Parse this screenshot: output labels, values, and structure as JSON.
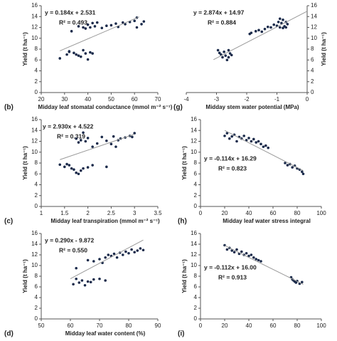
{
  "chart_data": [
    {
      "type": "scatter",
      "panel_label": "(b)",
      "xlabel": "Midday leaf stomatal conductance (mmol m⁻² s⁻¹)",
      "ylabel": "Yield (t ha⁻¹)",
      "equation": "y = 0.184x + 2.531",
      "r2": "R² = 0.493",
      "color": "#1a2a4a",
      "yaxis_position": "left",
      "xlim": [
        20,
        70
      ],
      "xticks": [
        20,
        30,
        40,
        50,
        60,
        70
      ],
      "ylim": [
        0,
        16
      ],
      "yticks": [
        0,
        2,
        4,
        6,
        8,
        10,
        12,
        14,
        16
      ],
      "x": [
        28,
        31,
        32,
        34,
        35,
        36,
        37,
        38,
        39,
        40,
        41,
        42,
        32,
        33,
        36,
        38,
        39,
        40,
        41,
        42,
        43,
        44,
        46,
        48,
        50,
        52,
        53,
        55,
        56,
        58,
        60,
        61,
        63,
        64,
        61
      ],
      "values": [
        6.3,
        7.0,
        7.5,
        7.3,
        7.0,
        6.8,
        6.6,
        7.8,
        7.2,
        6.1,
        7.4,
        7.2,
        7.6,
        11.3,
        12.2,
        12.0,
        11.8,
        12.5,
        12.0,
        12.8,
        12.2,
        12.9,
        11.9,
        12.3,
        12.4,
        12.7,
        12.1,
        12.9,
        12.6,
        13.0,
        13.2,
        13.8,
        12.6,
        13.1,
        12.0
      ],
      "trendline": {
        "x": [
          28,
          62
        ],
        "values": [
          7.68,
          13.94
        ]
      }
    },
    {
      "type": "scatter",
      "panel_label": "(g)",
      "xlabel": "Midday stem water potential (MPa)",
      "ylabel": "Yield (t ha⁻¹)",
      "equation": "y = 2.874x + 14.97",
      "r2": "R² = 0.884",
      "color": "#1a2a4a",
      "yaxis_position": "right",
      "xlim": [
        -4,
        0
      ],
      "xticks": [
        -4,
        -3,
        -2,
        -1,
        0
      ],
      "ylim": [
        0,
        16
      ],
      "yticks": [
        0,
        2,
        4,
        6,
        8,
        10,
        12,
        14,
        16
      ],
      "x": [
        -2.95,
        -2.9,
        -2.85,
        -2.8,
        -2.75,
        -2.7,
        -2.65,
        -2.6,
        -2.55,
        -2.5,
        -2.6,
        -1.9,
        -1.85,
        -1.7,
        -1.6,
        -1.5,
        -1.4,
        -1.3,
        -1.2,
        -1.1,
        -1.0,
        -0.95,
        -0.9,
        -0.85,
        -0.8,
        -0.75,
        -0.7,
        -0.65,
        -0.8,
        -0.9,
        -0.7
      ],
      "values": [
        7.8,
        7.3,
        7.0,
        6.5,
        7.5,
        6.8,
        6.0,
        6.5,
        7.2,
        6.9,
        7.8,
        10.8,
        11.0,
        11.3,
        11.5,
        11.2,
        11.7,
        12.1,
        12.0,
        12.5,
        12.3,
        13.0,
        12.0,
        12.8,
        13.4,
        12.2,
        13.0,
        12.6,
        11.9,
        13.6,
        12.0
      ],
      "trendline": {
        "x": [
          -3.1,
          0
        ],
        "values": [
          6.06,
          14.97
        ]
      }
    },
    {
      "type": "scatter",
      "panel_label": "(c)",
      "xlabel": "Midday leaf transpiration (mmol m⁻² s⁻¹)",
      "ylabel": "Yield (t ha⁻¹)",
      "equation": "y = 2.930x + 4.522",
      "r2": "R² = 0.319",
      "color": "#1a2a4a",
      "yaxis_position": "left",
      "xlim": [
        1,
        3.5
      ],
      "xticks": [
        1,
        1.5,
        2,
        2.5,
        3,
        3.5
      ],
      "ylim": [
        0,
        16
      ],
      "yticks": [
        0,
        2,
        4,
        6,
        8,
        10,
        12,
        14,
        16
      ],
      "x": [
        1.4,
        1.5,
        1.6,
        1.65,
        1.7,
        1.75,
        1.8,
        1.85,
        1.9,
        2.0,
        2.1,
        2.4,
        1.55,
        1.75,
        1.8,
        1.85,
        1.9,
        1.95,
        2.0,
        2.1,
        2.2,
        2.3,
        2.4,
        2.5,
        2.55,
        2.6,
        2.7,
        2.8,
        2.9,
        2.95,
        3.0,
        2.65
      ],
      "values": [
        7.7,
        7.3,
        7.6,
        7.0,
        6.8,
        6.2,
        6.0,
        6.6,
        7.0,
        7.2,
        7.6,
        7.3,
        7.8,
        12.5,
        11.8,
        12.2,
        13.6,
        12.0,
        12.6,
        11.0,
        11.6,
        12.8,
        12.1,
        11.5,
        12.9,
        11.0,
        12.5,
        12.7,
        13.0,
        12.8,
        13.5,
        12.2
      ],
      "trendline": {
        "x": [
          1.4,
          3
        ],
        "values": [
          8.62,
          13.31
        ]
      }
    },
    {
      "type": "scatter",
      "panel_label": "(h)",
      "xlabel": "Midday leaf water stress integral",
      "ylabel": "Yield (t ha⁻¹)",
      "equation": "y = -0.114x + 16.29",
      "r2": "R² = 0.823",
      "color": "#1a2a4a",
      "yaxis_position": "left",
      "xlim": [
        0,
        100
      ],
      "xticks": [
        0,
        20,
        40,
        60,
        80,
        100
      ],
      "ylim": [
        0,
        16
      ],
      "yticks": [
        0,
        2,
        4,
        6,
        8,
        10,
        12,
        14,
        16
      ],
      "x": [
        20,
        22,
        24,
        26,
        28,
        30,
        32,
        34,
        36,
        38,
        40,
        42,
        44,
        46,
        48,
        50,
        52,
        54,
        56,
        70,
        72,
        74,
        76,
        78,
        80,
        82,
        84,
        85
      ],
      "values": [
        13.0,
        13.5,
        12.5,
        12.9,
        13.2,
        12.0,
        12.8,
        12.5,
        13.0,
        12.2,
        12.6,
        12.0,
        12.4,
        11.8,
        12.0,
        11.5,
        11.0,
        11.2,
        10.8,
        8.0,
        7.6,
        7.8,
        7.2,
        7.5,
        7.0,
        6.8,
        6.4,
        6.0
      ],
      "trendline": {
        "x": [
          20,
          85
        ],
        "values": [
          14.01,
          6.6
        ]
      }
    },
    {
      "type": "scatter",
      "panel_label": "(d)",
      "xlabel": "Midday leaf water content (%)",
      "ylabel": "Yield (t ha⁻¹)",
      "equation": "y = 0.290x - 9.872",
      "r2": "R² = 0.550",
      "color": "#1a2a4a",
      "yaxis_position": "left",
      "xlim": [
        50,
        90
      ],
      "xticks": [
        50,
        60,
        70,
        80,
        90
      ],
      "ylim": [
        0,
        16
      ],
      "yticks": [
        0,
        2,
        4,
        6,
        8,
        10,
        12,
        14,
        16
      ],
      "x": [
        61,
        62,
        63,
        64,
        65,
        66,
        67,
        68,
        70,
        72,
        62,
        66,
        68,
        70,
        71,
        72,
        73,
        74,
        75,
        76,
        77,
        78,
        79,
        80,
        81,
        82,
        83,
        84,
        85
      ],
      "values": [
        6.5,
        7.5,
        6.8,
        7.2,
        6.3,
        7.0,
        6.9,
        7.4,
        7.5,
        7.2,
        9.5,
        11.0,
        10.8,
        11.2,
        10.5,
        11.5,
        12.0,
        11.8,
        12.2,
        11.5,
        12.4,
        12.0,
        12.6,
        12.3,
        13.0,
        12.5,
        12.8,
        13.2,
        12.9
      ],
      "trendline": {
        "x": [
          60,
          85
        ],
        "values": [
          7.53,
          14.78
        ]
      }
    },
    {
      "type": "scatter",
      "panel_label": "(i)",
      "ylabel": "Yield (t ha⁻¹)",
      "equation": "y = -0.112x + 16.00",
      "r2": "R² = 0.913",
      "color": "#1a2a4a",
      "yaxis_position": "left",
      "xlim": [
        0,
        100
      ],
      "xticks": [
        0,
        20,
        40,
        60,
        80,
        100
      ],
      "ylim": [
        0,
        16
      ],
      "yticks": [
        0,
        2,
        4,
        6,
        8,
        10,
        12,
        14,
        16
      ],
      "x": [
        20,
        22,
        24,
        26,
        28,
        30,
        32,
        34,
        36,
        38,
        40,
        42,
        44,
        46,
        48,
        50,
        75,
        76,
        77,
        78,
        79,
        80,
        82,
        84
      ],
      "values": [
        13.8,
        13.0,
        13.3,
        12.8,
        12.5,
        13.0,
        12.2,
        12.6,
        12.0,
        12.3,
        11.8,
        12.0,
        11.5,
        11.2,
        11.0,
        10.8,
        7.8,
        7.4,
        7.2,
        7.0,
        6.8,
        7.1,
        6.6,
        6.9
      ],
      "trendline": {
        "x": [
          20,
          85
        ],
        "values": [
          13.76,
          6.48
        ]
      }
    }
  ]
}
